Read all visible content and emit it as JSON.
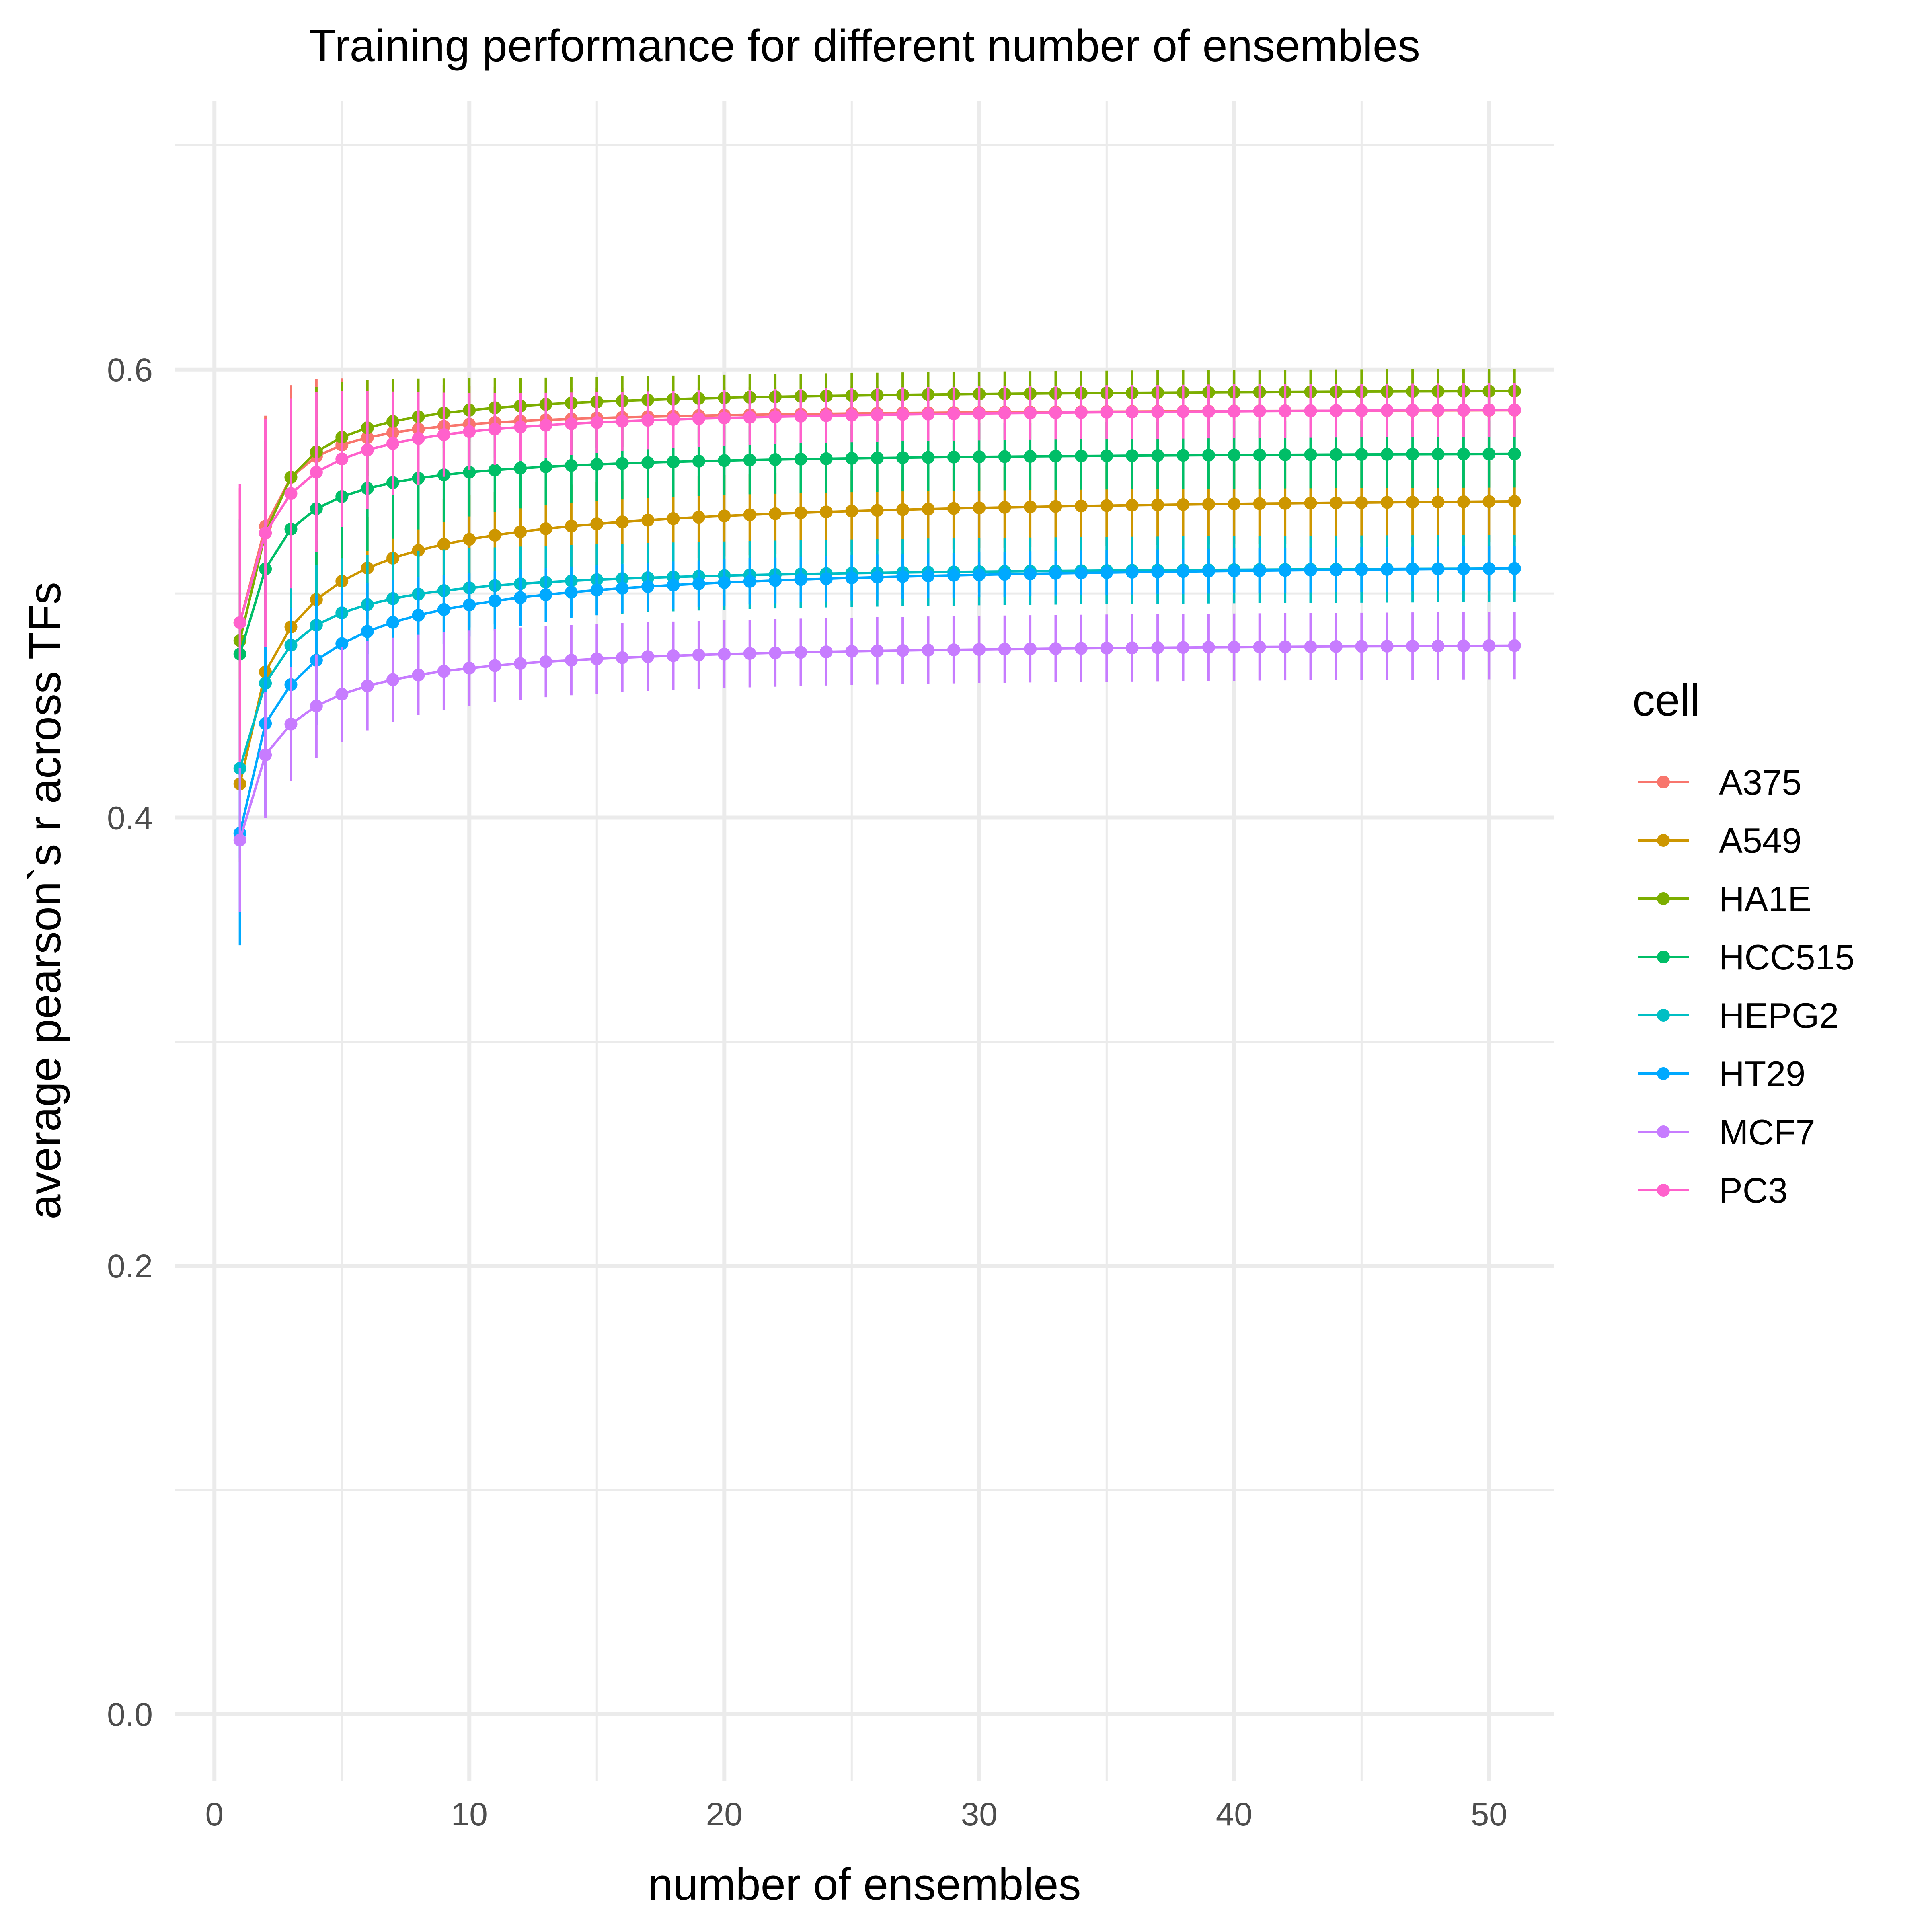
{
  "chart_data": {
    "type": "line",
    "title": "Training performance for different number of ensembles",
    "xlabel": "number of ensembles",
    "ylabel": "average pearson`s r across TFs",
    "xlim": [
      -1.55,
      52.55
    ],
    "ylim": [
      -0.03,
      0.72
    ],
    "x_ticks": [
      0,
      10,
      20,
      30,
      40,
      50
    ],
    "x_tick_labels": [
      "0",
      "10",
      "20",
      "30",
      "40",
      "50"
    ],
    "y_ticks": [
      0.0,
      0.2,
      0.4,
      0.6
    ],
    "y_tick_labels": [
      "0.0",
      "0.2",
      "0.4",
      "0.6"
    ],
    "grid": true,
    "legend": {
      "title": "cell",
      "position": "right"
    },
    "x": [
      1,
      2,
      3,
      4,
      5,
      6,
      7,
      8,
      9,
      10,
      11,
      12,
      13,
      14,
      15,
      16,
      17,
      18,
      19,
      20,
      21,
      22,
      23,
      24,
      25,
      26,
      27,
      28,
      29,
      30,
      31,
      32,
      33,
      34,
      35,
      36,
      37,
      38,
      39,
      40,
      41,
      42,
      43,
      44,
      45,
      46,
      47,
      48,
      49,
      50,
      51
    ],
    "series": [
      {
        "name": "A375",
        "color": "#F8766D",
        "plateau": 0.583,
        "start": 0.487,
        "second": 0.53,
        "rate": 0.62,
        "err_start": 0.06,
        "err_end": 0.012
      },
      {
        "name": "A549",
        "color": "#CD9600",
        "plateau": 0.545,
        "start": 0.415,
        "second": 0.465,
        "rate": 0.3,
        "err_start": 0.035,
        "err_end": 0.018
      },
      {
        "name": "HA1E",
        "color": "#7CAE00",
        "plateau": 0.592,
        "start": 0.479,
        "second": 0.527,
        "rate": 0.55,
        "err_start": 0.05,
        "err_end": 0.01
      },
      {
        "name": "HCC515",
        "color": "#00BE67",
        "plateau": 0.564,
        "start": 0.473,
        "second": 0.511,
        "rate": 0.45,
        "err_start": 0.06,
        "err_end": 0.015
      },
      {
        "name": "HEPG2",
        "color": "#00BFC4",
        "plateau": 0.513,
        "start": 0.422,
        "second": 0.46,
        "rate": 0.42,
        "err_start": 0.04,
        "err_end": 0.015
      },
      {
        "name": "HT29",
        "color": "#00A9FF",
        "plateau": 0.515,
        "start": 0.393,
        "second": 0.442,
        "rate": 0.28,
        "err_start": 0.05,
        "err_end": 0.01
      },
      {
        "name": "MCF7",
        "color": "#C77CFF",
        "plateau": 0.479,
        "start": 0.39,
        "second": 0.428,
        "rate": 0.33,
        "err_start": 0.032,
        "err_end": 0.015
      },
      {
        "name": "PC3",
        "color": "#FF61CC",
        "plateau": 0.584,
        "start": 0.487,
        "second": 0.527,
        "rate": 0.4,
        "err_start": 0.062,
        "err_end": 0.012
      }
    ]
  }
}
